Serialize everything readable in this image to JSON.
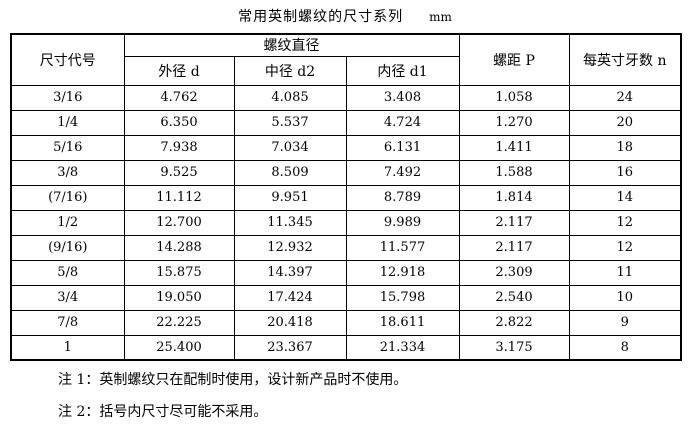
{
  "page": {
    "title": "常用英制螺纹的尺寸系列",
    "unit": "mm"
  },
  "table": {
    "headers": {
      "size_code": "尺寸代号",
      "thread_diameter_group": "螺纹直径",
      "major_diameter": "外径 d",
      "pitch_diameter": "中径 d2",
      "minor_diameter": "内径 d1",
      "pitch": "螺距 P",
      "threads_per_inch": "每英寸牙数 n"
    },
    "columns_order": [
      "code",
      "d",
      "d2",
      "d1",
      "p",
      "n"
    ],
    "rows": [
      {
        "code": "3/16",
        "d": "4.762",
        "d2": "4.085",
        "d1": "3.408",
        "p": "1.058",
        "n": "24"
      },
      {
        "code": "1/4",
        "d": "6.350",
        "d2": "5.537",
        "d1": "4.724",
        "p": "1.270",
        "n": "20"
      },
      {
        "code": "5/16",
        "d": "7.938",
        "d2": "7.034",
        "d1": "6.131",
        "p": "1.411",
        "n": "18"
      },
      {
        "code": "3/8",
        "d": "9.525",
        "d2": "8.509",
        "d1": "7.492",
        "p": "1.588",
        "n": "16"
      },
      {
        "code": "(7/16)",
        "d": "11.112",
        "d2": "9.951",
        "d1": "8.789",
        "p": "1.814",
        "n": "14"
      },
      {
        "code": "1/2",
        "d": "12.700",
        "d2": "11.345",
        "d1": "9.989",
        "p": "2.117",
        "n": "12"
      },
      {
        "code": "(9/16)",
        "d": "14.288",
        "d2": "12.932",
        "d1": "11.577",
        "p": "2.117",
        "n": "12"
      },
      {
        "code": "5/8",
        "d": "15.875",
        "d2": "14.397",
        "d1": "12.918",
        "p": "2.309",
        "n": "11"
      },
      {
        "code": "3/4",
        "d": "19.050",
        "d2": "17.424",
        "d1": "15.798",
        "p": "2.540",
        "n": "10"
      },
      {
        "code": "7/8",
        "d": "22.225",
        "d2": "20.418",
        "d1": "18.611",
        "p": "2.822",
        "n": "9"
      },
      {
        "code": "1",
        "d": "25.400",
        "d2": "23.367",
        "d1": "21.334",
        "p": "3.175",
        "n": "8"
      }
    ]
  },
  "notes": [
    {
      "label": "注 1：",
      "text": "英制螺纹只在配制时使用，设计新产品时不使用。"
    },
    {
      "label": "注 2：",
      "text": "括号内尺寸尽可能不采用。"
    }
  ]
}
